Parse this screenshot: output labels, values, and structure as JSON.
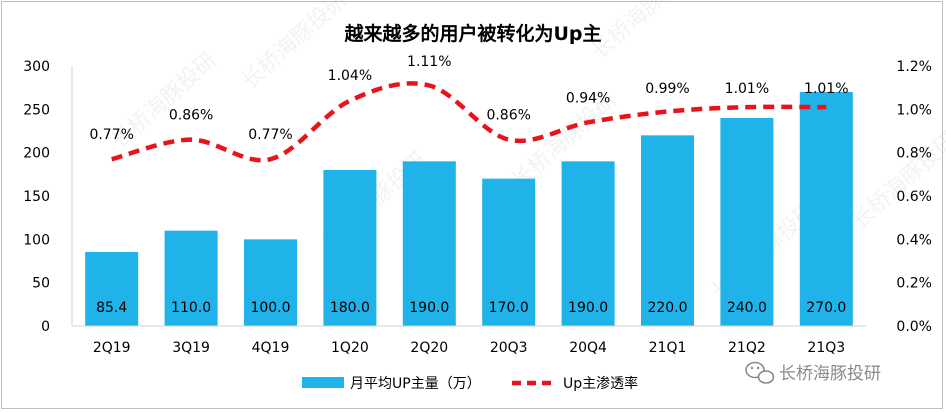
{
  "chart_data": {
    "type": "bar+line",
    "title": "越来越多的用户被转化为Up主",
    "categories": [
      "2Q19",
      "3Q19",
      "4Q19",
      "1Q20",
      "2Q20",
      "20Q3",
      "20Q4",
      "21Q1",
      "21Q2",
      "21Q3"
    ],
    "series": [
      {
        "name": "月平均UP主量（万）",
        "type": "bar",
        "axis": "left",
        "values": [
          85.4,
          110.0,
          100.0,
          180.0,
          190.0,
          170.0,
          190.0,
          220.0,
          240.0,
          270.0
        ],
        "labels": [
          "85.4",
          "110.0",
          "100.0",
          "180.0",
          "190.0",
          "170.0",
          "190.0",
          "220.0",
          "240.0",
          "270.0"
        ]
      },
      {
        "name": "Up主渗透率",
        "type": "line",
        "style": "dashed-smooth",
        "axis": "right",
        "values": [
          0.77,
          0.86,
          0.77,
          1.04,
          1.11,
          0.86,
          0.94,
          0.99,
          1.01,
          1.01
        ],
        "labels": [
          "0.77%",
          "0.86%",
          "0.77%",
          "1.04%",
          "1.11%",
          "0.86%",
          "0.94%",
          "0.99%",
          "1.01%",
          "1.01%"
        ]
      }
    ],
    "y_left": {
      "min": 0,
      "max": 300,
      "ticks": [
        "0",
        "50",
        "100",
        "150",
        "200",
        "250",
        "300"
      ]
    },
    "y_right": {
      "min": 0,
      "max": 1.2,
      "ticks": [
        "0.0%",
        "0.2%",
        "0.4%",
        "0.6%",
        "0.8%",
        "1.0%",
        "1.2%"
      ]
    },
    "legend_position": "bottom"
  },
  "colors": {
    "bar": "#1fb3ea",
    "line": "#e8141b",
    "text": "#000000"
  },
  "watermark": {
    "brand": "长桥海豚投研"
  }
}
